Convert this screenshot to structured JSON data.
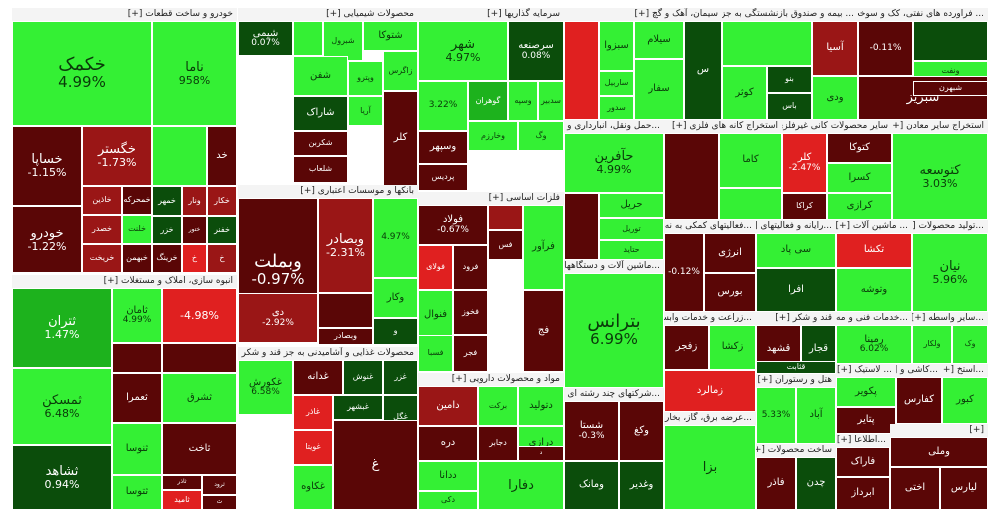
{
  "chart_data": {
    "type": "treemap",
    "colors": {
      "strong_up": "#34f034",
      "up": "#1db21d",
      "mild_up": "#177a17",
      "flat": "#0b4d0b",
      "mild_down": "#5a0606",
      "down": "#9a1616",
      "strong_down": "#e02020",
      "text_dark": "#0a3a0a",
      "text_light": "#ffffff"
    },
    "sectors": [
      {
        "title": "خودرو و ساخت قطعات [+]",
        "tiles": [
          {
            "n": "خکمک",
            "c": "4.99%",
            "s": "strong_up"
          },
          {
            "n": "ناما",
            "c": "958%",
            "s": "strong_up"
          },
          {
            "n": "خساپا",
            "c": "-1.15%",
            "s": "mild_down"
          },
          {
            "n": "خگستر",
            "c": "-1.73%",
            "s": "down"
          },
          {
            "n": "",
            "c": "",
            "s": "strong_up"
          },
          {
            "n": "خد",
            "c": "",
            "s": "mild_down"
          },
          {
            "n": "خودرو",
            "c": "-1.22%",
            "s": "mild_down"
          },
          {
            "n": "خاذین",
            "c": "",
            "s": "down"
          },
          {
            "n": "خمحرکه",
            "c": "",
            "s": "mild_down"
          },
          {
            "n": "خمهر",
            "c": "",
            "s": "flat"
          },
          {
            "n": "ونار",
            "c": "",
            "s": "down"
          },
          {
            "n": "خکار",
            "c": "",
            "s": "down"
          },
          {
            "n": "خصدر",
            "c": "",
            "s": "down"
          },
          {
            "n": "خلنت",
            "c": "",
            "s": "strong_up"
          },
          {
            "n": "خزر",
            "c": "",
            "s": "flat"
          },
          {
            "n": "ختور",
            "c": "",
            "s": "mild_down"
          },
          {
            "n": "خفنر",
            "c": "",
            "s": "flat"
          },
          {
            "n": "خریخت",
            "c": "",
            "s": "down"
          },
          {
            "n": "خبهمن",
            "c": "",
            "s": "mild_down"
          },
          {
            "n": "خرینگ",
            "c": "",
            "s": "mild_down"
          },
          {
            "n": "خ",
            "c": "",
            "s": "strong_down"
          },
          {
            "n": "خ",
            "c": "",
            "s": "down"
          }
        ]
      },
      {
        "title": "انبوه سازی، املاک و مستغلات [+]",
        "tiles": [
          {
            "n": "ثتران",
            "c": "1.47%",
            "s": "up"
          },
          {
            "n": "ثامان",
            "c": "4.99%",
            "s": "strong_up"
          },
          {
            "n": "",
            "c": "-4.98%",
            "s": "strong_down"
          },
          {
            "n": "",
            "c": "",
            "s": "mild_down"
          },
          {
            "n": "",
            "c": "",
            "s": "mild_down"
          },
          {
            "n": "ثمسکن",
            "c": "6.48%",
            "s": "strong_up"
          },
          {
            "n": "ثشرق",
            "c": "",
            "s": "strong_up"
          },
          {
            "n": "ثعمرا",
            "c": "",
            "s": "mild_down"
          },
          {
            "n": "ثنوسا",
            "c": "",
            "s": "strong_up"
          },
          {
            "n": "ثاخت",
            "c": "",
            "s": "mild_down"
          },
          {
            "n": "ثشاهد",
            "c": "0.94%",
            "s": "flat"
          },
          {
            "n": "ثتوسا",
            "c": "",
            "s": "strong_up"
          },
          {
            "n": "ثاذر",
            "c": "",
            "s": "mild_down"
          },
          {
            "n": "ثاميد",
            "c": "",
            "s": "strong_down"
          },
          {
            "n": "ثرود",
            "c": "",
            "s": "mild_down"
          },
          {
            "n": "ث",
            "c": "",
            "s": "mild_down"
          }
        ]
      },
      {
        "title": "محصولات شیمیایی [+]",
        "tiles": [
          {
            "n": "شیمی",
            "c": "0.07%",
            "s": "flat"
          },
          {
            "n": "",
            "c": "",
            "s": "strong_up"
          },
          {
            "n": "شتوکا",
            "c": "",
            "s": "strong_up"
          },
          {
            "n": "شبرول",
            "c": "",
            "s": "strong_up"
          },
          {
            "n": "شفن",
            "c": "",
            "s": "strong_up"
          },
          {
            "n": "شاراک",
            "c": "",
            "s": "flat"
          },
          {
            "n": "شکربن",
            "c": "",
            "s": "mild_down"
          },
          {
            "n": "شلعاب",
            "c": "",
            "s": "mild_down"
          },
          {
            "n": "وپترو",
            "c": "",
            "s": "strong_up"
          },
          {
            "n": "زاگرس",
            "c": "",
            "s": "strong_up"
          },
          {
            "n": "آریا",
            "c": "",
            "s": "strong_up"
          },
          {
            "n": "کلر",
            "c": "",
            "s": "mild_down"
          }
        ]
      },
      {
        "title": "بانکها و موسسات اعتباری [+]",
        "tiles": [
          {
            "n": "وبملت",
            "c": "-0.97%",
            "s": "mild_down"
          },
          {
            "n": "وبصادر",
            "c": "-2.31%",
            "s": "down"
          },
          {
            "n": "",
            "c": "4.97%",
            "s": "strong_up"
          },
          {
            "n": "دی",
            "c": "-2.92%",
            "s": "down"
          },
          {
            "n": "",
            "c": "",
            "s": "mild_down"
          },
          {
            "n": "وکار",
            "c": "",
            "s": "strong_up"
          },
          {
            "n": "وبصادر",
            "c": "",
            "s": "mild_down"
          },
          {
            "n": "و",
            "c": "",
            "s": "flat"
          }
        ]
      },
      {
        "title": "محصولات غذایی و آشامیدنی به جز قند و شکر [+]",
        "tiles": [
          {
            "n": "غکورش",
            "c": "6.58%",
            "s": "strong_up"
          },
          {
            "n": "غدانه",
            "c": "",
            "s": "mild_down"
          },
          {
            "n": "غنوش",
            "c": "",
            "s": "flat"
          },
          {
            "n": "غزر",
            "c": "",
            "s": "flat"
          },
          {
            "n": "غاذر",
            "c": "",
            "s": "strong_down"
          },
          {
            "n": "غبشهر",
            "c": "",
            "s": "flat"
          },
          {
            "n": "غگل",
            "c": "",
            "s": "flat"
          },
          {
            "n": "غویتا",
            "c": "",
            "s": "strong_down"
          },
          {
            "n": "غکاوه",
            "c": "",
            "s": "strong_up"
          },
          {
            "n": "غ",
            "c": "",
            "s": "mild_down"
          }
        ]
      },
      {
        "title": "سرمایه گذاریها [+]",
        "tiles": [
          {
            "n": "شهر",
            "c": "4.97%",
            "s": "strong_up"
          },
          {
            "n": "سرصنعه",
            "c": "0.08%",
            "s": "flat"
          },
          {
            "n": "",
            "c": "3.22%",
            "s": "strong_up"
          },
          {
            "n": "گوهران",
            "c": "",
            "s": "up"
          },
          {
            "n": "وسپه",
            "c": "",
            "s": "strong_up"
          },
          {
            "n": "سدبیر",
            "c": "",
            "s": "strong_up"
          },
          {
            "n": "وخارزم",
            "c": "",
            "s": "strong_up"
          },
          {
            "n": "وگ",
            "c": "",
            "s": "strong_up"
          },
          {
            "n": "وسپهر",
            "c": "",
            "s": "mild_down"
          },
          {
            "n": "پردیس",
            "c": "",
            "s": "mild_down"
          }
        ]
      },
      {
        "title": "فلزات اساسی [+]",
        "tiles": [
          {
            "n": "فولاد",
            "c": "-0.67%",
            "s": "mild_down"
          },
          {
            "n": "",
            "c": "",
            "s": "down"
          },
          {
            "n": "فولای",
            "c": "",
            "s": "strong_down"
          },
          {
            "n": "فرود",
            "c": "",
            "s": "mild_down"
          },
          {
            "n": "فس",
            "c": "",
            "s": "mild_down"
          },
          {
            "n": "فرآور",
            "c": "",
            "s": "strong_up"
          },
          {
            "n": "فنوال",
            "c": "",
            "s": "strong_up"
          },
          {
            "n": "فخوز",
            "c": "",
            "s": "mild_down"
          },
          {
            "n": "فسبا",
            "c": "",
            "s": "strong_up"
          },
          {
            "n": "فجر",
            "c": "",
            "s": "mild_down"
          },
          {
            "n": "فج",
            "c": "",
            "s": "mild_down"
          }
        ]
      },
      {
        "title": "مواد و محصولات دارویی [+]",
        "tiles": [
          {
            "n": "دامین",
            "c": "",
            "s": "down"
          },
          {
            "n": "برکت",
            "c": "",
            "s": "strong_up"
          },
          {
            "n": "دتولید",
            "c": "",
            "s": "strong_up"
          },
          {
            "n": "دره",
            "c": "",
            "s": "mild_down"
          },
          {
            "n": "دجابر",
            "c": "",
            "s": "mild_down"
          },
          {
            "n": "درازی",
            "c": "",
            "s": "strong_up"
          },
          {
            "n": "ددانا",
            "c": "",
            "s": "strong_up"
          },
          {
            "n": "دکی",
            "c": "",
            "s": "strong_up"
          },
          {
            "n": "دفارا",
            "c": "",
            "s": "strong_up"
          },
          {
            "n": "د",
            "c": "",
            "s": "mild_down"
          }
        ]
      },
      {
        "title": "سیمان، آهک و گچ [+]",
        "tiles": [
          {
            "n": "",
            "c": "",
            "s": "strong_down"
          },
          {
            "n": "سیلام",
            "c": "",
            "s": "strong_up"
          },
          {
            "n": "سبزوا",
            "c": "",
            "s": "strong_up"
          },
          {
            "n": "ساربیل",
            "c": "",
            "s": "strong_up"
          },
          {
            "n": "سدور",
            "c": "",
            "s": "strong_up"
          },
          {
            "n": "سفار",
            "c": "",
            "s": "strong_up"
          },
          {
            "n": "س",
            "c": "",
            "s": "flat"
          }
        ]
      },
      {
        "title": "...حمل ونقل، انبارداری و ار [+]",
        "tiles": [
          {
            "n": "حآفرین",
            "c": "4.99%",
            "s": "strong_up"
          },
          {
            "n": "",
            "c": "",
            "s": "mild_down"
          },
          {
            "n": "حریل",
            "c": "",
            "s": "strong_up"
          },
          {
            "n": "توریل",
            "c": "",
            "s": "strong_up"
          },
          {
            "n": "حتاید",
            "c": "",
            "s": "strong_up"
          }
        ]
      },
      {
        "title": "...ماشین آلات و دستگاههای [+]",
        "tiles": [
          {
            "n": "بترانس",
            "c": "6.99%",
            "s": "strong_up"
          }
        ]
      },
      {
        "title": "...شرکتهای چند رشته ای [+]",
        "tiles": [
          {
            "n": "شستا",
            "c": "-0.3%",
            "s": "mild_down"
          },
          {
            "n": "وکغ",
            "c": "",
            "s": "mild_down"
          },
          {
            "n": "وغدیر",
            "c": "",
            "s": "flat"
          },
          {
            "n": "ومانک",
            "c": "",
            "s": "flat"
          }
        ]
      },
      {
        "title": "... بیمه و صندوق بازنشستگی به جزتامین [+]",
        "tiles": [
          {
            "n": "",
            "c": "",
            "s": "strong_up"
          },
          {
            "n": "آسیا",
            "c": "",
            "s": "down"
          },
          {
            "n": "ودی",
            "c": "",
            "s": "strong_up"
          },
          {
            "n": "کوثر",
            "c": "",
            "s": "strong_up"
          },
          {
            "n": "بنو",
            "c": "",
            "s": "flat"
          },
          {
            "n": "باس",
            "c": "",
            "s": "flat"
          }
        ]
      },
      {
        "title": "... فراورده های نفتی، کک و سوخت [+]",
        "tiles": [
          {
            "n": "",
            "c": "-0.11%",
            "s": "mild_down"
          },
          {
            "n": "",
            "c": "",
            "s": "flat"
          },
          {
            "n": "ونفت",
            "c": "",
            "s": "strong_up"
          },
          {
            "n": "شبریز",
            "c": "",
            "s": "mild_down"
          },
          {
            "n": "شبهرن",
            "c": "",
            "s": "mild_down"
          }
        ]
      },
      {
        "title": "استخراج کانه های فلزی [+]",
        "tiles": [
          {
            "n": "",
            "c": "",
            "s": "mild_down"
          },
          {
            "n": "کاما",
            "c": "",
            "s": "strong_up"
          },
          {
            "n": "",
            "c": "",
            "s": "strong_up"
          }
        ]
      },
      {
        "title": "سایر محصولات کانی غیرفلزی [+]",
        "tiles": [
          {
            "n": "کلر",
            "c": "-2.47%",
            "s": "strong_down"
          },
          {
            "n": "کتوکا",
            "c": "",
            "s": "mild_down"
          },
          {
            "n": "کسرا",
            "c": "",
            "s": "strong_up"
          },
          {
            "n": "کراکا",
            "c": "",
            "s": "mild_down"
          },
          {
            "n": "کرازی",
            "c": "",
            "s": "strong_up"
          }
        ]
      },
      {
        "title": "استخراج سایر معادن [+]",
        "tiles": [
          {
            "n": "کتوسعه",
            "c": "3.03%",
            "s": "strong_up"
          }
        ]
      },
      {
        "title": "...فعالیتهای کمکی به نه [+]",
        "tiles": [
          {
            "n": "",
            "c": "-0.12%",
            "s": "mild_down"
          },
          {
            "n": "انرژی",
            "c": "",
            "s": "mild_down"
          },
          {
            "n": "بورس",
            "c": "",
            "s": "mild_down"
          }
        ]
      },
      {
        "title": "...رایانه و فعالیتهای [+]",
        "tiles": [
          {
            "n": "سی پاد",
            "c": "",
            "s": "strong_up"
          },
          {
            "n": "افرا",
            "c": "",
            "s": "flat"
          }
        ]
      },
      {
        "title": "... ماشین آلات [+]",
        "tiles": [
          {
            "n": "تکشا",
            "c": "",
            "s": "strong_down"
          },
          {
            "n": "وتوشه",
            "c": "",
            "s": "strong_up"
          }
        ]
      },
      {
        "title": "...تولید محصولات [+]",
        "tiles": [
          {
            "n": "نیان",
            "c": "5.96%",
            "s": "strong_up"
          }
        ]
      },
      {
        "title": "...زراعت و خدمات وابسته [+]",
        "tiles": [
          {
            "n": "زفجر",
            "c": "",
            "s": "mild_down"
          },
          {
            "n": "زکشا",
            "c": "",
            "s": "strong_up"
          },
          {
            "n": "زمالرد",
            "c": "",
            "s": "strong_down"
          }
        ]
      },
      {
        "title": "قند و شکر [+]",
        "tiles": [
          {
            "n": "قشهد",
            "c": "",
            "s": "mild_down"
          },
          {
            "n": "قجار",
            "c": "",
            "s": "flat"
          },
          {
            "n": "قثابت",
            "c": "",
            "s": "flat"
          }
        ]
      },
      {
        "title": "...خدمات فنی و مه [+]",
        "tiles": [
          {
            "n": "رمپنا",
            "c": "6.02%",
            "s": "strong_up"
          }
        ]
      },
      {
        "title": "...سایر واسطه [+]",
        "tiles": [
          {
            "n": "ولکار",
            "c": "",
            "s": "strong_up"
          },
          {
            "n": "وک",
            "c": "",
            "s": "strong_up"
          }
        ]
      },
      {
        "title": "هتل و رستوران [+]",
        "tiles": [
          {
            "n": "",
            "c": "5.33%",
            "s": "strong_up"
          },
          {
            "n": "آباد",
            "c": "",
            "s": "strong_up"
          }
        ]
      },
      {
        "title": "... لاستیک [+]",
        "tiles": [
          {
            "n": "پکویر",
            "c": "",
            "s": "strong_up"
          },
          {
            "n": "پتایر",
            "c": "",
            "s": "mild_down"
          }
        ]
      },
      {
        "title": "...کاشی و [+]",
        "tiles": [
          {
            "n": "کفارس",
            "c": "",
            "s": "mild_down"
          }
        ]
      },
      {
        "title": "...استخ [+]",
        "tiles": [
          {
            "n": "کبور",
            "c": "",
            "s": "strong_up"
          }
        ]
      },
      {
        "title": "...عرضه برق، گاز، بخار [+]",
        "tiles": [
          {
            "n": "بزا",
            "c": "",
            "s": "strong_up"
          }
        ]
      },
      {
        "title": "ساخت محصولات [+]",
        "tiles": [
          {
            "n": "فاذر",
            "c": "",
            "s": "mild_down"
          },
          {
            "n": "چدن",
            "c": "",
            "s": "flat"
          }
        ]
      },
      {
        "title": "...اطلاعا [+]",
        "tiles": [
          {
            "n": "فاراک",
            "c": "",
            "s": "mild_down"
          },
          {
            "n": "ابرداز",
            "c": "",
            "s": "mild_down"
          }
        ]
      },
      {
        "title": "[+]",
        "tiles": [
          {
            "n": "وملی",
            "c": "",
            "s": "mild_down"
          },
          {
            "n": "اختی",
            "c": "",
            "s": "mild_down"
          },
          {
            "n": "لیارس",
            "c": "",
            "s": "mild_down"
          }
        ]
      }
    ]
  }
}
